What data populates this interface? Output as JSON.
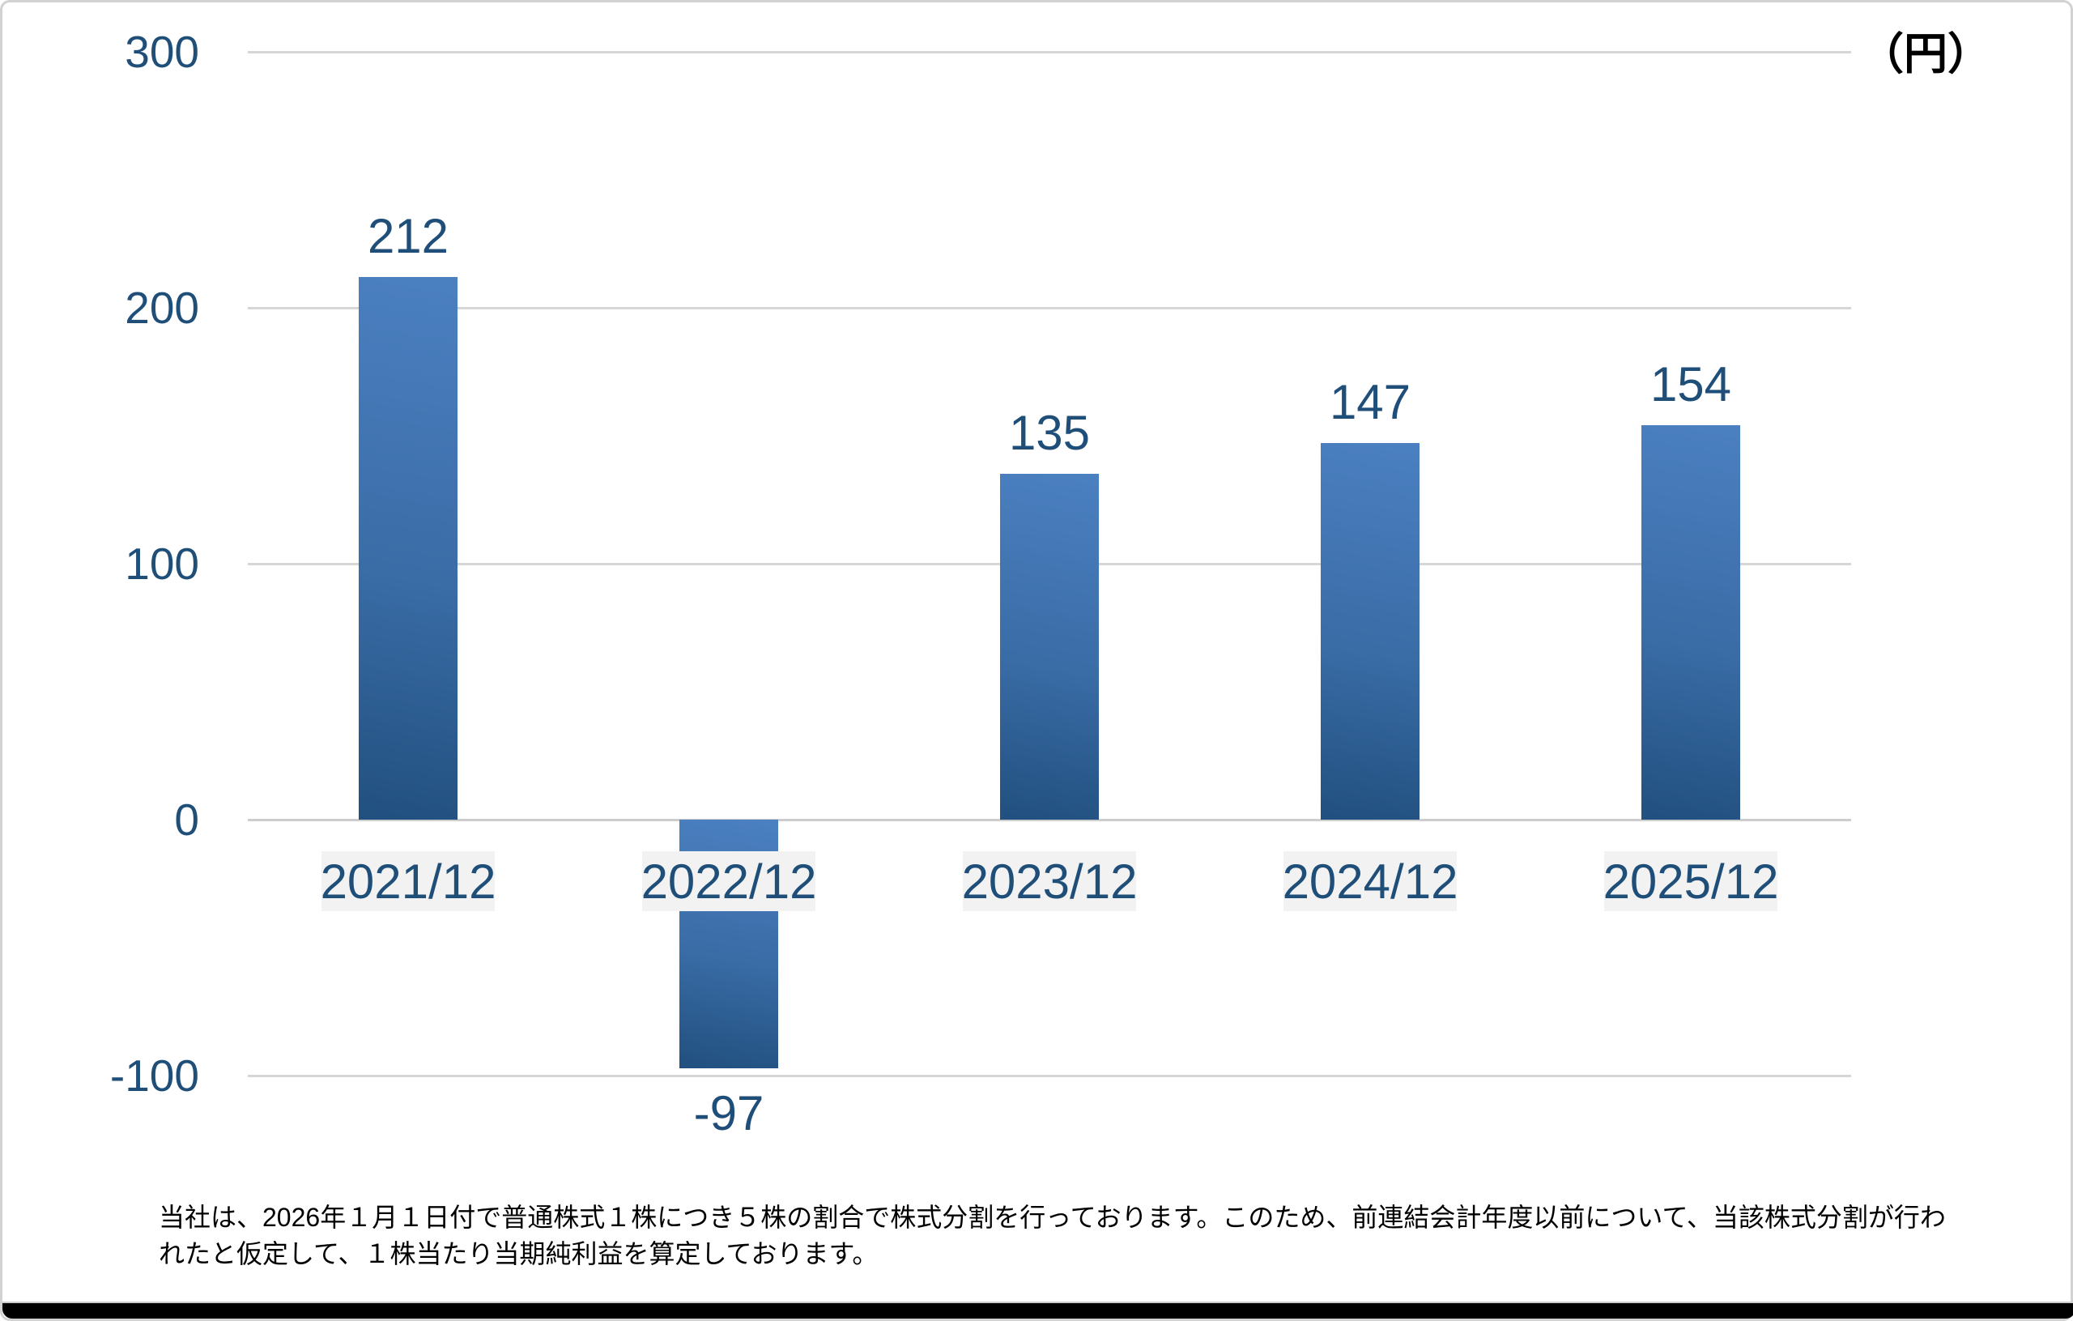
{
  "page": {
    "footnote_lines": [
      "当社は、2026年１月１日付で普通株式１株につき５株の割合で株式分割を行っております。このため、前連結会計年度以前について、当該株式分割が行わ",
      "れたと仮定して、１株当たり当期純利益を算定しております。"
    ]
  },
  "chart_data": {
    "type": "bar",
    "categories": [
      "2021/12",
      "2022/12",
      "2023/12",
      "2024/12",
      "2025/12"
    ],
    "values": [
      212,
      -97,
      135,
      147,
      154
    ],
    "data_labels": [
      "212",
      "-97",
      "135",
      "147",
      "154"
    ],
    "y_ticks": [
      300,
      200,
      100,
      0,
      -100
    ],
    "ylim": [
      -100,
      300
    ],
    "unit_label": "（円）",
    "grid": true,
    "legend": "none",
    "xlabel": "",
    "ylabel": ""
  },
  "colors": {
    "label_blue": "#1F4E79",
    "bar_gradient_top": "#4B80C1",
    "bar_gradient_mid": "#3A6CA6",
    "bar_gradient_bottom": "#21507F",
    "gridline": "#D6D6D6",
    "zero_axis": "#CDCDCD",
    "category_bg": "#F2F2F2",
    "unit_text": "#000000",
    "footnote_text": "#000000",
    "frame_border": "#D2D2D2",
    "bottom_strip": "#000000",
    "background": "#FFFFFF"
  }
}
